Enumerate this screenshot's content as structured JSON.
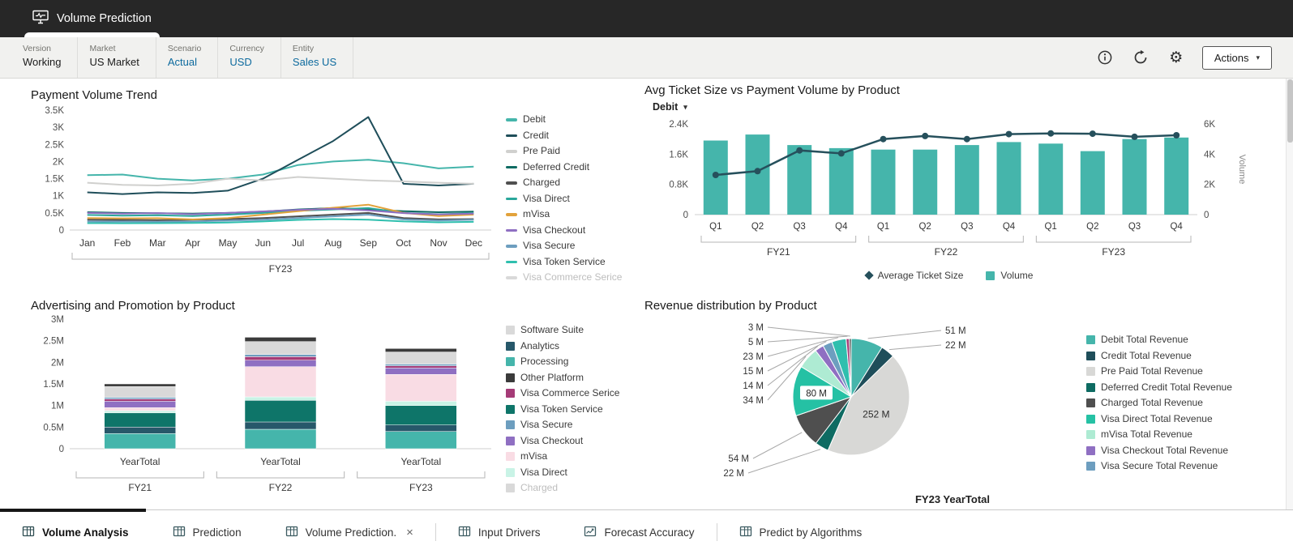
{
  "header": {
    "tab_title": "Volume Prediction",
    "icon": "monitor-pulse-icon"
  },
  "icons": {
    "gear": "⚙",
    "caret_down": "▾",
    "close": "×"
  },
  "pov": {
    "items": [
      {
        "label": "Version",
        "value": "Working",
        "editable": false
      },
      {
        "label": "Market",
        "value": "US Market",
        "editable": false
      },
      {
        "label": "Scenario",
        "value": "Actual",
        "editable": true
      },
      {
        "label": "Currency",
        "value": "USD",
        "editable": true
      },
      {
        "label": "Entity",
        "value": "Sales US",
        "editable": true
      }
    ],
    "toolbar": {
      "info_icon": "info-icon",
      "refresh_icon": "refresh-icon",
      "settings_icon": "gear-icon",
      "actions_label": "Actions"
    }
  },
  "chart_data": [
    {
      "id": "payment-volume-trend",
      "type": "line",
      "title": "Payment Volume Trend",
      "x": [
        "Jan",
        "Feb",
        "Mar",
        "Apr",
        "May",
        "Jun",
        "Jul",
        "Aug",
        "Sep",
        "Oct",
        "Nov",
        "Dec"
      ],
      "group_label": "FY23",
      "ylim": [
        0,
        3500
      ],
      "yticks": [
        "0",
        "0.5K",
        "1K",
        "1.5K",
        "2K",
        "2.5K",
        "3K",
        "3.5K"
      ],
      "series": [
        {
          "name": "Debit",
          "color": "#45b5ab",
          "values": [
            1600,
            1620,
            1500,
            1450,
            1500,
            1620,
            1900,
            2000,
            2050,
            1950,
            1800,
            1850
          ]
        },
        {
          "name": "Credit",
          "color": "#1f4e5a",
          "values": [
            1100,
            1050,
            1100,
            1080,
            1150,
            1500,
            2050,
            2600,
            3300,
            1350,
            1300,
            1350
          ]
        },
        {
          "name": "Pre Paid",
          "color": "#d0d0ce",
          "values": [
            1380,
            1320,
            1300,
            1350,
            1500,
            1450,
            1550,
            1500,
            1450,
            1420,
            1380,
            1350
          ]
        },
        {
          "name": "Deferred Credit",
          "color": "#0e6b62",
          "values": [
            520,
            500,
            490,
            480,
            500,
            540,
            600,
            640,
            600,
            550,
            520,
            540
          ]
        },
        {
          "name": "Charged",
          "color": "#4f4f4f",
          "values": [
            300,
            295,
            285,
            300,
            320,
            350,
            400,
            450,
            500,
            350,
            310,
            320
          ]
        },
        {
          "name": "Visa Direct",
          "color": "#2aa79b",
          "values": [
            440,
            420,
            430,
            410,
            450,
            500,
            560,
            600,
            640,
            500,
            460,
            490
          ]
        },
        {
          "name": "mVisa",
          "color": "#e2a23b",
          "values": [
            350,
            340,
            345,
            310,
            350,
            450,
            550,
            650,
            740,
            500,
            410,
            450
          ]
        },
        {
          "name": "Visa Checkout",
          "color": "#8f6fc2",
          "values": [
            500,
            480,
            495,
            460,
            500,
            545,
            590,
            620,
            575,
            495,
            455,
            480
          ]
        },
        {
          "name": "Visa Secure",
          "color": "#6d9ebf",
          "values": [
            250,
            248,
            240,
            250,
            275,
            300,
            350,
            400,
            450,
            310,
            280,
            300
          ]
        },
        {
          "name": "Visa Token Service",
          "color": "#2fbfae",
          "values": [
            200,
            198,
            200,
            205,
            220,
            250,
            295,
            320,
            300,
            250,
            225,
            240
          ]
        },
        {
          "name": "Visa Commerce Serice",
          "color": "#c9c9c9",
          "disabled": true,
          "values": null
        }
      ]
    },
    {
      "id": "avg-ticket-vs-volume",
      "type": "combo",
      "title": "Avg Ticket Size vs Payment Volume by Product",
      "product_selector": "Debit",
      "x": [
        "Q1",
        "Q2",
        "Q3",
        "Q4",
        "Q1",
        "Q2",
        "Q3",
        "Q4",
        "Q1",
        "Q2",
        "Q3",
        "Q4"
      ],
      "groups": [
        "FY21",
        "FY22",
        "FY23"
      ],
      "y_left": {
        "ylim": [
          0,
          2400
        ],
        "ticks": [
          "0",
          "0.8K",
          "1.6K",
          "2.4K"
        ]
      },
      "y_right": {
        "ylim": [
          0,
          6000
        ],
        "ticks": [
          "0",
          "2K",
          "4K",
          "6K"
        ],
        "title": "Volume"
      },
      "series": [
        {
          "name": "Volume",
          "type": "bar",
          "axis": "right",
          "color": "#45b5ab",
          "values": [
            4900,
            5300,
            4600,
            4400,
            4300,
            4300,
            4600,
            4800,
            4700,
            4200,
            5000,
            5100
          ]
        },
        {
          "name": "Average Ticket Size",
          "type": "line",
          "axis": "left",
          "color": "#26505c",
          "values": [
            1050,
            1150,
            1700,
            1620,
            2000,
            2080,
            2000,
            2130,
            2150,
            2140,
            2060,
            2100
          ]
        }
      ]
    },
    {
      "id": "advertising-promotion",
      "type": "bar",
      "title": "Advertising and Promotion by Product",
      "x": [
        "YearTotal",
        "YearTotal",
        "YearTotal"
      ],
      "groups": [
        "FY21",
        "FY22",
        "FY23"
      ],
      "ylim": [
        0,
        3
      ],
      "yticks": [
        "0",
        "0.5M",
        "1M",
        "1.5M",
        "2M",
        "2.5M",
        "3M"
      ],
      "stacked": true,
      "series": [
        {
          "name": "Processing",
          "color": "#45b5ab",
          "values": [
            0.35,
            0.45,
            0.4
          ]
        },
        {
          "name": "Analytics",
          "color": "#27586a",
          "values": [
            0.15,
            0.17,
            0.15
          ]
        },
        {
          "name": "Visa Token Service",
          "color": "#0e7569",
          "values": [
            0.33,
            0.5,
            0.45
          ]
        },
        {
          "name": "Visa Direct",
          "color": "#c9f3e6",
          "values": [
            0.05,
            0.08,
            0.1
          ]
        },
        {
          "name": "mVisa",
          "color": "#f9dce4",
          "values": [
            0.07,
            0.7,
            0.62
          ]
        },
        {
          "name": "Visa Checkout",
          "color": "#8f6fc2",
          "values": [
            0.15,
            0.15,
            0.15
          ]
        },
        {
          "name": "Visa Commerce Serice",
          "color": "#a53b77",
          "values": [
            0.05,
            0.08,
            0.05
          ]
        },
        {
          "name": "Visa Secure",
          "color": "#6d9ebf",
          "values": [
            0.04,
            0.05,
            0.04
          ]
        },
        {
          "name": "Software Suite",
          "color": "#d9d9d9",
          "values": [
            0.25,
            0.3,
            0.28
          ]
        },
        {
          "name": "Other Platform",
          "color": "#3b3b3b",
          "values": [
            0.06,
            0.1,
            0.08
          ]
        }
      ],
      "legend": [
        {
          "name": "Software Suite",
          "color": "#d9d9d9"
        },
        {
          "name": "Analytics",
          "color": "#27586a"
        },
        {
          "name": "Processing",
          "color": "#45b5ab"
        },
        {
          "name": "Other Platform",
          "color": "#3b3b3b"
        },
        {
          "name": "Visa Commerce Serice",
          "color": "#a53b77"
        },
        {
          "name": "Visa Token Service",
          "color": "#0e7569"
        },
        {
          "name": "Visa Secure",
          "color": "#6d9ebf"
        },
        {
          "name": "Visa Checkout",
          "color": "#8f6fc2"
        },
        {
          "name": "mVisa",
          "color": "#f9dce4"
        },
        {
          "name": "Visa Direct",
          "color": "#c9f3e6"
        },
        {
          "name": "Charged",
          "color": "#c9c9c9",
          "disabled": true
        }
      ]
    },
    {
      "id": "revenue-distribution",
      "type": "pie",
      "title": "Revenue distribution by Product",
      "caption": "FY23 YearTotal",
      "slices": [
        {
          "label": "51 M",
          "value": 51,
          "color": "#45b5ab"
        },
        {
          "label": "22 M",
          "value": 22,
          "color": "#1f4e5a"
        },
        {
          "label": "252 M",
          "value": 252,
          "color": "#d8d8d6"
        },
        {
          "label": "22 M",
          "value": 22,
          "color": "#0e6b62"
        },
        {
          "label": "54 M",
          "value": 54,
          "color": "#4f4f4f"
        },
        {
          "label": "80 M",
          "value": 80,
          "color": "#25c1a4"
        },
        {
          "label": "34 M",
          "value": 34,
          "color": "#aeebd3"
        },
        {
          "label": "14 M",
          "value": 14,
          "color": "#8f6fc2"
        },
        {
          "label": "15 M",
          "value": 15,
          "color": "#6d9ebf"
        },
        {
          "label": "23 M",
          "value": 23,
          "color": "#2fbfae"
        },
        {
          "label": "5 M",
          "value": 5,
          "color": "#a53b77"
        },
        {
          "label": "3 M",
          "value": 3,
          "color": "#3b3b3b"
        }
      ],
      "legend": [
        {
          "name": "Debit Total Revenue",
          "color": "#45b5ab"
        },
        {
          "name": "Credit Total Revenue",
          "color": "#1f4e5a"
        },
        {
          "name": "Pre Paid Total Revenue",
          "color": "#d8d8d6"
        },
        {
          "name": "Deferred Credit Total Revenue",
          "color": "#0e6b62"
        },
        {
          "name": "Charged Total Revenue",
          "color": "#4f4f4f"
        },
        {
          "name": "Visa Direct Total Revenue",
          "color": "#25c1a4"
        },
        {
          "name": "mVisa Total Revenue",
          "color": "#aeebd3"
        },
        {
          "name": "Visa Checkout Total Revenue",
          "color": "#8f6fc2"
        },
        {
          "name": "Visa Secure Total Revenue",
          "color": "#6d9ebf"
        }
      ]
    }
  ],
  "bottom_tabs": [
    {
      "label": "Volume Analysis",
      "active": true,
      "icon": "grid-icon"
    },
    {
      "label": "Prediction",
      "active": false,
      "icon": "grid-icon"
    },
    {
      "label": "Volume Prediction.",
      "active": false,
      "icon": "grid-icon",
      "closable": true
    },
    {
      "label": "Input Drivers",
      "active": false,
      "icon": "grid-icon"
    },
    {
      "label": "Forecast Accuracy",
      "active": false,
      "icon": "forecast-chart-icon"
    },
    {
      "label": "Predict by Algorithms",
      "active": false,
      "icon": "grid-icon"
    }
  ],
  "colors": {
    "accent_teal": "#45b5ab",
    "dark_slate": "#26505c",
    "link_blue": "#0d6a9e"
  }
}
